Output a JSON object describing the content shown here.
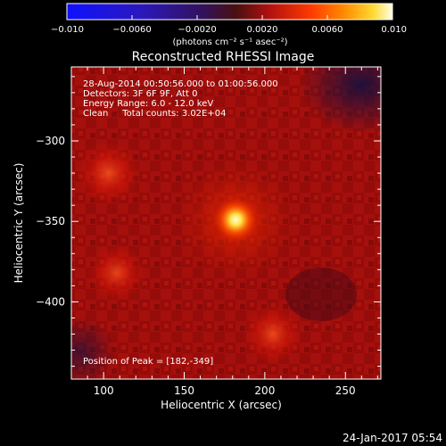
{
  "chart_data": {
    "type": "heatmap",
    "title": "Reconstructed RHESSI Image",
    "xlabel": "Heliocentric X (arcsec)",
    "ylabel": "Heliocentric Y (arcsec)",
    "xlim": [
      80,
      272
    ],
    "ylim": [
      -448,
      -254
    ],
    "x_ticks": [
      100,
      150,
      200,
      250
    ],
    "y_ticks": [
      -300,
      -350,
      -400
    ],
    "colorbar": {
      "range": [
        -0.01,
        0.01
      ],
      "ticks": [
        -0.01,
        -0.006,
        -0.002,
        0.002,
        0.006,
        0.01
      ],
      "tick_labels": [
        "−0.010",
        "−0.0060",
        "−0.0020",
        "0.0020",
        "0.0060",
        "0.010"
      ],
      "unit_label": "(photons cm⁻² s⁻¹ asec⁻²)",
      "colormap": "blue-purple-red-yellow-white"
    },
    "annotations": [
      "28-Aug-2014 00:50:56.000 to 01:00:56.000",
      "Detectors: 3F 6F 9F, Att 0",
      "Energy Range: 6.0 - 12.0 keV",
      "Clean     Total counts: 3.02E+04"
    ],
    "peak_label": "Position of Peak = [182,-349]",
    "sources": [
      {
        "x": 182,
        "y": -349,
        "relative_intensity": 1.0
      },
      {
        "x": 103,
        "y": -320,
        "relative_intensity": 0.45
      },
      {
        "x": 205,
        "y": -420,
        "relative_intensity": 0.4
      },
      {
        "x": 108,
        "y": -382,
        "relative_intensity": 0.35
      }
    ],
    "grid": false
  },
  "timestamp": "24-Jan-2017 05:54"
}
